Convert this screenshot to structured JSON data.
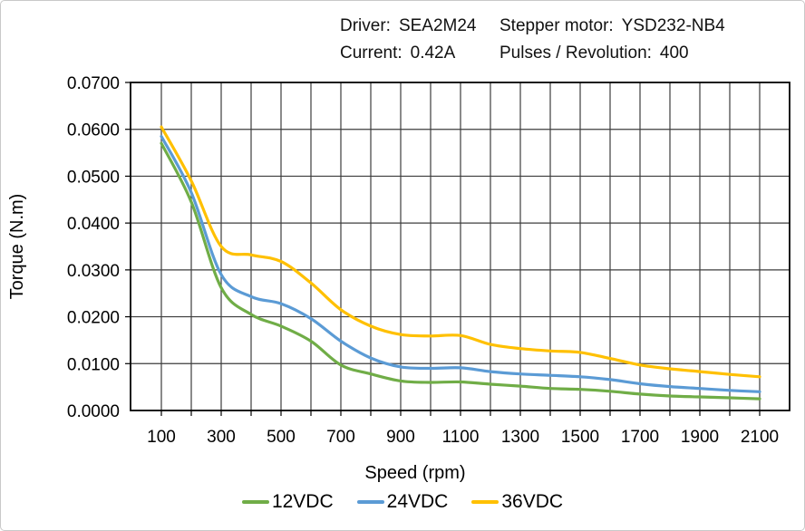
{
  "header": {
    "specs": [
      {
        "label": "Driver:",
        "value": "SEA2M24"
      },
      {
        "label": "Stepper motor:",
        "value": "YSD232-NB4"
      },
      {
        "label": "Current:",
        "value": "0.42A"
      },
      {
        "label": "Pulses / Revolution:",
        "value": "400"
      }
    ]
  },
  "chart_data": {
    "type": "line",
    "title": "",
    "xlabel": "Speed  (rpm)",
    "ylabel": "Torque (N.m)",
    "x": [
      100,
      200,
      300,
      400,
      500,
      600,
      700,
      800,
      900,
      1000,
      1100,
      1200,
      1300,
      1400,
      1500,
      1600,
      1700,
      1800,
      1900,
      2000,
      2100
    ],
    "series": [
      {
        "name": "12VDC",
        "color": "#70AD47",
        "values": [
          0.057,
          0.0445,
          0.0262,
          0.0205,
          0.018,
          0.0148,
          0.0097,
          0.0078,
          0.0063,
          0.006,
          0.0061,
          0.0056,
          0.0052,
          0.0047,
          0.0045,
          0.0041,
          0.0035,
          0.0031,
          0.0029,
          0.0027,
          0.0025
        ]
      },
      {
        "name": "24VDC",
        "color": "#5B9BD5",
        "values": [
          0.0585,
          0.0465,
          0.029,
          0.0243,
          0.0228,
          0.0196,
          0.0148,
          0.0112,
          0.0093,
          0.009,
          0.0091,
          0.0083,
          0.0078,
          0.0075,
          0.0072,
          0.0066,
          0.0057,
          0.0051,
          0.0047,
          0.0043,
          0.004
        ]
      },
      {
        "name": "36VDC",
        "color": "#FFC000",
        "values": [
          0.0605,
          0.049,
          0.035,
          0.0332,
          0.0318,
          0.0272,
          0.0215,
          0.018,
          0.0162,
          0.0159,
          0.016,
          0.0141,
          0.0132,
          0.0127,
          0.0124,
          0.0111,
          0.0097,
          0.0089,
          0.0083,
          0.0077,
          0.0072
        ]
      }
    ],
    "xlim": [
      0,
      2200
    ],
    "ylim": [
      0,
      0.07
    ],
    "x_grid_step": 100,
    "x_tick_labels": [
      "100",
      "300",
      "500",
      "700",
      "900",
      "1100",
      "1300",
      "1500",
      "1700",
      "1900",
      "2100"
    ],
    "y_tick_labels": [
      "0.0000",
      "0.0100",
      "0.0200",
      "0.0300",
      "0.0400",
      "0.0500",
      "0.0600",
      "0.0700"
    ],
    "grid": "on",
    "legend_position": "bottom",
    "grid_color": "#3d3d3d",
    "border_color": "#000000"
  }
}
